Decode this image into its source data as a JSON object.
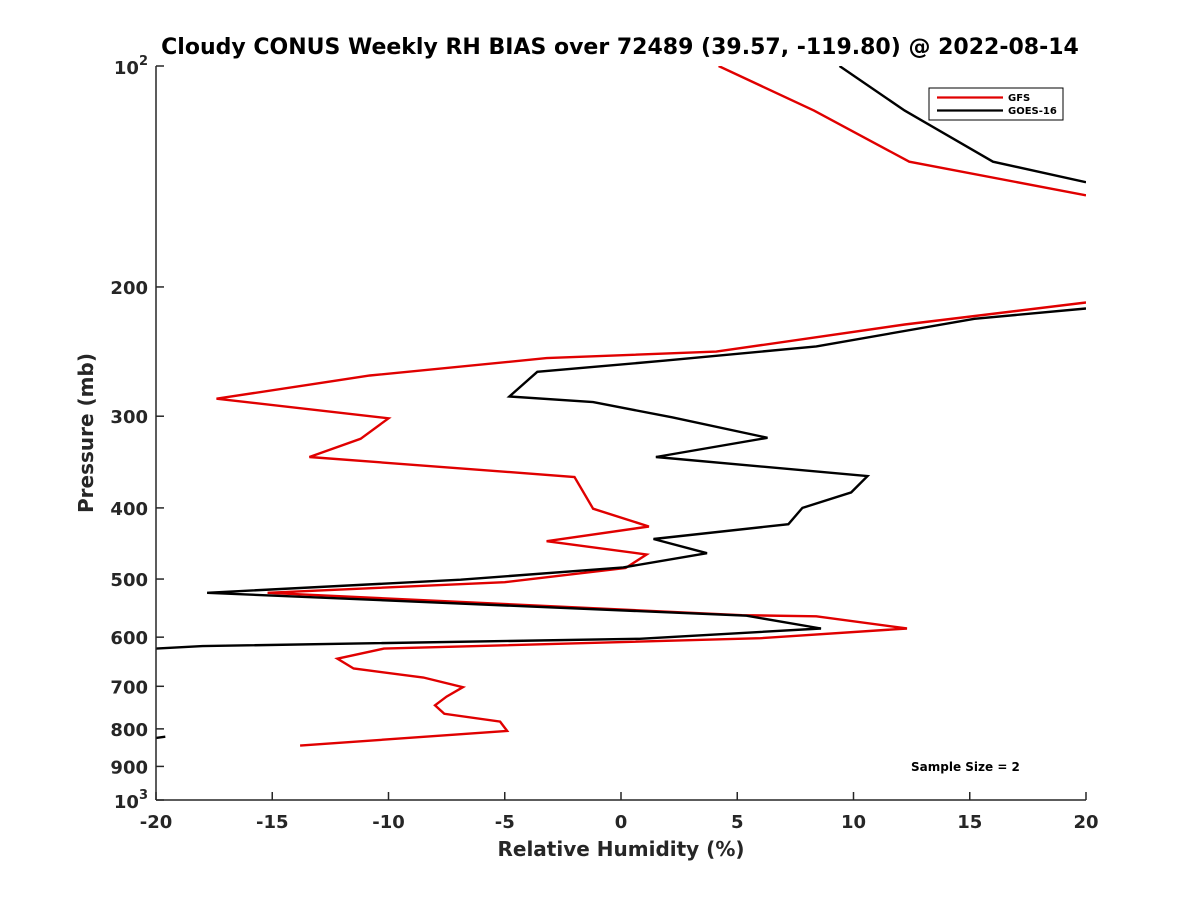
{
  "chart_data": {
    "type": "line",
    "title": "Cloudy CONUS Weekly RH BIAS over 72489 (39.57, -119.80) @ 2022-08-14",
    "xlabel": "Relative Humidity (%)",
    "ylabel": "Pressure (mb)",
    "xlim": [
      -20,
      20
    ],
    "ylim": [
      100,
      1000
    ],
    "y_scale": "log",
    "y_reversed": true,
    "grid": false,
    "legend_position": "top-right",
    "x_ticks": [
      -20,
      -15,
      -10,
      -5,
      0,
      5,
      10,
      15,
      20
    ],
    "x_tick_labels": [
      "-20",
      "-15",
      "-10",
      "-5",
      "0",
      "5",
      "10",
      "15",
      "20"
    ],
    "y_ticks": [
      200,
      300,
      400,
      500,
      600,
      700,
      800,
      900
    ],
    "y_tick_labels": [
      "200",
      "300",
      "400",
      "500",
      "600",
      "700",
      "800",
      "900"
    ],
    "y_end_labels": [
      {
        "value": 100,
        "base": "10",
        "exp": "2"
      },
      {
        "value": 1000,
        "base": "10",
        "exp": "3"
      }
    ],
    "annotation": "Sample Size = 2",
    "series": [
      {
        "name": "GFS",
        "color": "#e00000",
        "segments": [
          [
            {
              "x": 4.2,
              "y": 100
            },
            {
              "x": 8.3,
              "y": 115
            },
            {
              "x": 12.4,
              "y": 135
            },
            {
              "x": 20.0,
              "y": 150
            }
          ],
          [
            {
              "x": 20.0,
              "y": 210
            },
            {
              "x": 12.2,
              "y": 225
            },
            {
              "x": 4.1,
              "y": 245
            },
            {
              "x": -3.2,
              "y": 250
            },
            {
              "x": -10.8,
              "y": 264
            },
            {
              "x": -17.4,
              "y": 284
            },
            {
              "x": -10.0,
              "y": 302
            },
            {
              "x": -11.2,
              "y": 322
            },
            {
              "x": -13.4,
              "y": 341
            },
            {
              "x": -2.0,
              "y": 363
            },
            {
              "x": -1.2,
              "y": 401
            },
            {
              "x": 1.2,
              "y": 424
            },
            {
              "x": -3.2,
              "y": 444
            },
            {
              "x": 1.1,
              "y": 463
            },
            {
              "x": 0.2,
              "y": 483
            },
            {
              "x": -5.0,
              "y": 505
            },
            {
              "x": -15.2,
              "y": 522
            },
            {
              "x": 5.2,
              "y": 560
            },
            {
              "x": 8.4,
              "y": 562
            },
            {
              "x": 12.3,
              "y": 584
            },
            {
              "x": 6.0,
              "y": 602
            },
            {
              "x": -10.2,
              "y": 622
            },
            {
              "x": -12.2,
              "y": 642
            },
            {
              "x": -11.5,
              "y": 662
            },
            {
              "x": -8.5,
              "y": 681
            },
            {
              "x": -6.8,
              "y": 702
            },
            {
              "x": -7.5,
              "y": 723
            },
            {
              "x": -8.0,
              "y": 743
            },
            {
              "x": -7.6,
              "y": 763
            },
            {
              "x": -5.2,
              "y": 782
            },
            {
              "x": -4.9,
              "y": 805
            },
            {
              "x": -13.8,
              "y": 843
            }
          ]
        ]
      },
      {
        "name": "GOES-16",
        "color": "#000000",
        "segments": [
          [
            {
              "x": 9.4,
              "y": 100
            },
            {
              "x": 12.2,
              "y": 115
            },
            {
              "x": 16.0,
              "y": 135
            },
            {
              "x": 20.0,
              "y": 144
            }
          ],
          [
            {
              "x": 20.0,
              "y": 214
            },
            {
              "x": 15.2,
              "y": 221
            },
            {
              "x": 8.4,
              "y": 241
            },
            {
              "x": 1.9,
              "y": 252
            },
            {
              "x": -3.6,
              "y": 261
            },
            {
              "x": -4.8,
              "y": 282
            },
            {
              "x": -1.2,
              "y": 287
            },
            {
              "x": 2.2,
              "y": 301
            },
            {
              "x": 6.3,
              "y": 321
            },
            {
              "x": 1.5,
              "y": 341
            },
            {
              "x": 10.6,
              "y": 362
            },
            {
              "x": 9.9,
              "y": 381
            },
            {
              "x": 7.8,
              "y": 400
            },
            {
              "x": 7.2,
              "y": 421
            },
            {
              "x": 1.4,
              "y": 441
            },
            {
              "x": 3.7,
              "y": 461
            },
            {
              "x": 0.1,
              "y": 482
            },
            {
              "x": -6.9,
              "y": 501
            },
            {
              "x": -17.8,
              "y": 522
            },
            {
              "x": 5.4,
              "y": 561
            },
            {
              "x": 8.6,
              "y": 584
            },
            {
              "x": 0.8,
              "y": 603
            },
            {
              "x": -18.0,
              "y": 617
            },
            {
              "x": -20.0,
              "y": 622
            }
          ],
          [
            {
              "x": -19.6,
              "y": 820
            },
            {
              "x": -20.0,
              "y": 823
            }
          ]
        ]
      }
    ]
  }
}
